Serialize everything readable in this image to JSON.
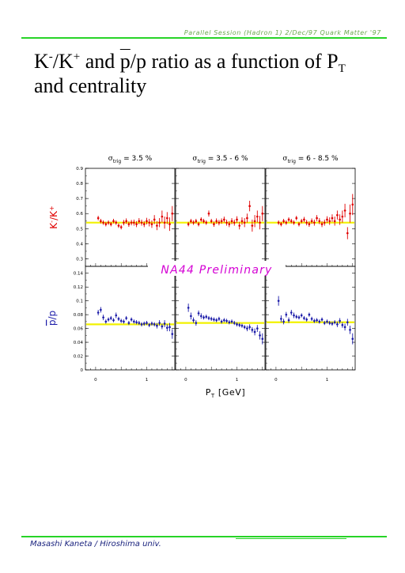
{
  "header": {
    "session_text": "Parallel Session (Hadron 1) 2/Dec/97 Quark Matter '97",
    "rule_color": "#27d427"
  },
  "title": {
    "line1_a": "K",
    "sup_minus": "-",
    "slash1": "/K",
    "sup_plus": "+",
    "and": " and ",
    "pbar": "p",
    "slash_p": "/p ratio as a function of P",
    "sub_t": "T",
    "line2": "and centrality"
  },
  "footer": {
    "author": "Masashi Kaneta / Hiroshima univ."
  },
  "chart_data": {
    "type": "scatter",
    "preliminary_label": "NA44 Preliminary",
    "xlabel": "P",
    "xlabel_sub": "T",
    "xlabel_unit": " [GeV]",
    "x_ticks": [
      "0",
      "1"
    ],
    "xlim": [
      -0.2,
      1.55
    ],
    "columns": [
      {
        "sigma": "σ",
        "sub": "trig",
        "value": " = 3.5 %"
      },
      {
        "sigma": "σ",
        "sub": "trig",
        "value": " = 3.5 - 6 %"
      },
      {
        "sigma": "σ",
        "sub": "trig",
        "value": " = 6 - 8.5 %"
      }
    ],
    "rows": [
      {
        "name": "K-/K+",
        "ylabel": "K",
        "ylabel_sup1": "-",
        "ylabel_mid": "/K",
        "ylabel_sup2": "+",
        "color": "#e00000",
        "ylim": [
          0.25,
          0.9
        ],
        "y_ticks": [
          "0.3",
          "0.4",
          "0.5",
          "0.6",
          "0.7",
          "0.8",
          "0.9"
        ],
        "reference_color": "#f2f200",
        "reference": [
          0.54,
          0.54,
          0.54
        ],
        "panels": [
          {
            "x": [
              0.05,
              0.1,
              0.15,
              0.2,
              0.25,
              0.3,
              0.35,
              0.4,
              0.45,
              0.5,
              0.55,
              0.6,
              0.65,
              0.7,
              0.75,
              0.8,
              0.85,
              0.9,
              0.95,
              1.0,
              1.05,
              1.1,
              1.15,
              1.2,
              1.25,
              1.3,
              1.35,
              1.4,
              1.45,
              1.5
            ],
            "y": [
              0.57,
              0.55,
              0.54,
              0.53,
              0.54,
              0.53,
              0.55,
              0.54,
              0.52,
              0.51,
              0.54,
              0.55,
              0.53,
              0.54,
              0.54,
              0.53,
              0.55,
              0.54,
              0.53,
              0.55,
              0.54,
              0.53,
              0.56,
              0.52,
              0.54,
              0.58,
              0.54,
              0.57,
              0.53,
              0.6
            ],
            "err": [
              0.015,
              0.015,
              0.015,
              0.015,
              0.015,
              0.015,
              0.015,
              0.015,
              0.015,
              0.015,
              0.018,
              0.018,
              0.018,
              0.018,
              0.02,
              0.02,
              0.02,
              0.02,
              0.02,
              0.022,
              0.025,
              0.025,
              0.03,
              0.03,
              0.03,
              0.04,
              0.04,
              0.04,
              0.045,
              0.05
            ]
          },
          {
            "x": [
              0.05,
              0.1,
              0.15,
              0.2,
              0.25,
              0.3,
              0.35,
              0.4,
              0.45,
              0.5,
              0.55,
              0.6,
              0.65,
              0.7,
              0.75,
              0.8,
              0.85,
              0.9,
              0.95,
              1.0,
              1.05,
              1.1,
              1.15,
              1.2,
              1.25,
              1.3,
              1.35,
              1.4,
              1.45,
              1.5
            ],
            "y": [
              0.53,
              0.55,
              0.54,
              0.55,
              0.53,
              0.56,
              0.55,
              0.54,
              0.6,
              0.55,
              0.53,
              0.55,
              0.54,
              0.55,
              0.56,
              0.54,
              0.53,
              0.55,
              0.54,
              0.56,
              0.52,
              0.55,
              0.54,
              0.57,
              0.65,
              0.52,
              0.55,
              0.58,
              0.54,
              0.6
            ],
            "err": [
              0.015,
              0.015,
              0.015,
              0.015,
              0.015,
              0.015,
              0.015,
              0.015,
              0.02,
              0.015,
              0.018,
              0.018,
              0.018,
              0.018,
              0.02,
              0.02,
              0.02,
              0.02,
              0.02,
              0.022,
              0.025,
              0.025,
              0.03,
              0.03,
              0.035,
              0.04,
              0.04,
              0.04,
              0.045,
              0.05
            ]
          },
          {
            "x": [
              0.05,
              0.1,
              0.15,
              0.2,
              0.25,
              0.3,
              0.35,
              0.4,
              0.45,
              0.5,
              0.55,
              0.6,
              0.65,
              0.7,
              0.75,
              0.8,
              0.85,
              0.9,
              0.95,
              1.0,
              1.05,
              1.1,
              1.15,
              1.2,
              1.25,
              1.3,
              1.35,
              1.4,
              1.45,
              1.5
            ],
            "y": [
              0.54,
              0.53,
              0.55,
              0.54,
              0.56,
              0.55,
              0.54,
              0.57,
              0.53,
              0.55,
              0.56,
              0.54,
              0.53,
              0.55,
              0.54,
              0.57,
              0.55,
              0.53,
              0.54,
              0.56,
              0.55,
              0.57,
              0.55,
              0.59,
              0.56,
              0.58,
              0.62,
              0.47,
              0.6,
              0.66
            ],
            "err": [
              0.015,
              0.015,
              0.015,
              0.015,
              0.015,
              0.015,
              0.015,
              0.015,
              0.015,
              0.015,
              0.018,
              0.018,
              0.018,
              0.018,
              0.02,
              0.02,
              0.02,
              0.02,
              0.02,
              0.022,
              0.025,
              0.025,
              0.03,
              0.03,
              0.035,
              0.04,
              0.045,
              0.04,
              0.06,
              0.07
            ]
          }
        ]
      },
      {
        "name": "pbar/p",
        "ylabel": "p",
        "ylabel_mid": "/p",
        "color": "#1a1aa8",
        "ylim": [
          0,
          0.15
        ],
        "y_ticks": [
          "0",
          "0.02",
          "0.04",
          "0.06",
          "0.08",
          "0.1",
          "0.12",
          "0.14"
        ],
        "reference_color": "#f2f200",
        "reference": [
          0.066,
          0.068,
          0.069
        ],
        "panels": [
          {
            "x": [
              0.05,
              0.1,
              0.15,
              0.2,
              0.25,
              0.3,
              0.35,
              0.4,
              0.45,
              0.5,
              0.55,
              0.6,
              0.65,
              0.7,
              0.75,
              0.8,
              0.85,
              0.9,
              0.95,
              1.0,
              1.05,
              1.1,
              1.15,
              1.2,
              1.25,
              1.3,
              1.35,
              1.4,
              1.45,
              1.5
            ],
            "y": [
              0.083,
              0.087,
              0.076,
              0.07,
              0.073,
              0.075,
              0.072,
              0.079,
              0.074,
              0.071,
              0.07,
              0.075,
              0.068,
              0.073,
              0.07,
              0.069,
              0.068,
              0.066,
              0.067,
              0.068,
              0.065,
              0.067,
              0.066,
              0.064,
              0.068,
              0.063,
              0.067,
              0.061,
              0.062,
              0.052
            ],
            "err": [
              0.004,
              0.004,
              0.004,
              0.003,
              0.003,
              0.003,
              0.003,
              0.004,
              0.003,
              0.003,
              0.003,
              0.003,
              0.003,
              0.003,
              0.003,
              0.003,
              0.003,
              0.003,
              0.003,
              0.003,
              0.003,
              0.003,
              0.003,
              0.004,
              0.004,
              0.004,
              0.005,
              0.005,
              0.006,
              0.007
            ]
          },
          {
            "x": [
              0.05,
              0.1,
              0.15,
              0.2,
              0.25,
              0.3,
              0.35,
              0.4,
              0.45,
              0.5,
              0.55,
              0.6,
              0.65,
              0.7,
              0.75,
              0.8,
              0.85,
              0.9,
              0.95,
              1.0,
              1.05,
              1.1,
              1.15,
              1.2,
              1.25,
              1.3,
              1.35,
              1.4,
              1.45,
              1.5
            ],
            "y": [
              0.09,
              0.078,
              0.072,
              0.068,
              0.082,
              0.078,
              0.076,
              0.077,
              0.075,
              0.074,
              0.073,
              0.072,
              0.074,
              0.07,
              0.072,
              0.071,
              0.069,
              0.07,
              0.068,
              0.066,
              0.065,
              0.064,
              0.062,
              0.06,
              0.062,
              0.058,
              0.055,
              0.06,
              0.05,
              0.045
            ],
            "err": [
              0.006,
              0.005,
              0.004,
              0.004,
              0.004,
              0.004,
              0.003,
              0.003,
              0.003,
              0.003,
              0.003,
              0.003,
              0.003,
              0.003,
              0.003,
              0.003,
              0.003,
              0.003,
              0.003,
              0.003,
              0.003,
              0.003,
              0.003,
              0.004,
              0.004,
              0.004,
              0.005,
              0.005,
              0.006,
              0.008
            ]
          },
          {
            "x": [
              0.05,
              0.1,
              0.15,
              0.2,
              0.25,
              0.3,
              0.35,
              0.4,
              0.45,
              0.5,
              0.55,
              0.6,
              0.65,
              0.7,
              0.75,
              0.8,
              0.85,
              0.9,
              0.95,
              1.0,
              1.05,
              1.1,
              1.15,
              1.2,
              1.25,
              1.3,
              1.35,
              1.4,
              1.45,
              1.5
            ],
            "y": [
              0.1,
              0.074,
              0.07,
              0.08,
              0.072,
              0.083,
              0.079,
              0.077,
              0.076,
              0.079,
              0.075,
              0.073,
              0.08,
              0.074,
              0.071,
              0.072,
              0.07,
              0.073,
              0.068,
              0.07,
              0.068,
              0.067,
              0.069,
              0.066,
              0.071,
              0.065,
              0.062,
              0.069,
              0.058,
              0.045
            ],
            "err": [
              0.007,
              0.005,
              0.004,
              0.004,
              0.004,
              0.004,
              0.004,
              0.003,
              0.003,
              0.003,
              0.003,
              0.003,
              0.003,
              0.003,
              0.003,
              0.003,
              0.003,
              0.003,
              0.003,
              0.003,
              0.003,
              0.003,
              0.003,
              0.004,
              0.004,
              0.004,
              0.005,
              0.005,
              0.006,
              0.008
            ]
          }
        ]
      }
    ]
  }
}
